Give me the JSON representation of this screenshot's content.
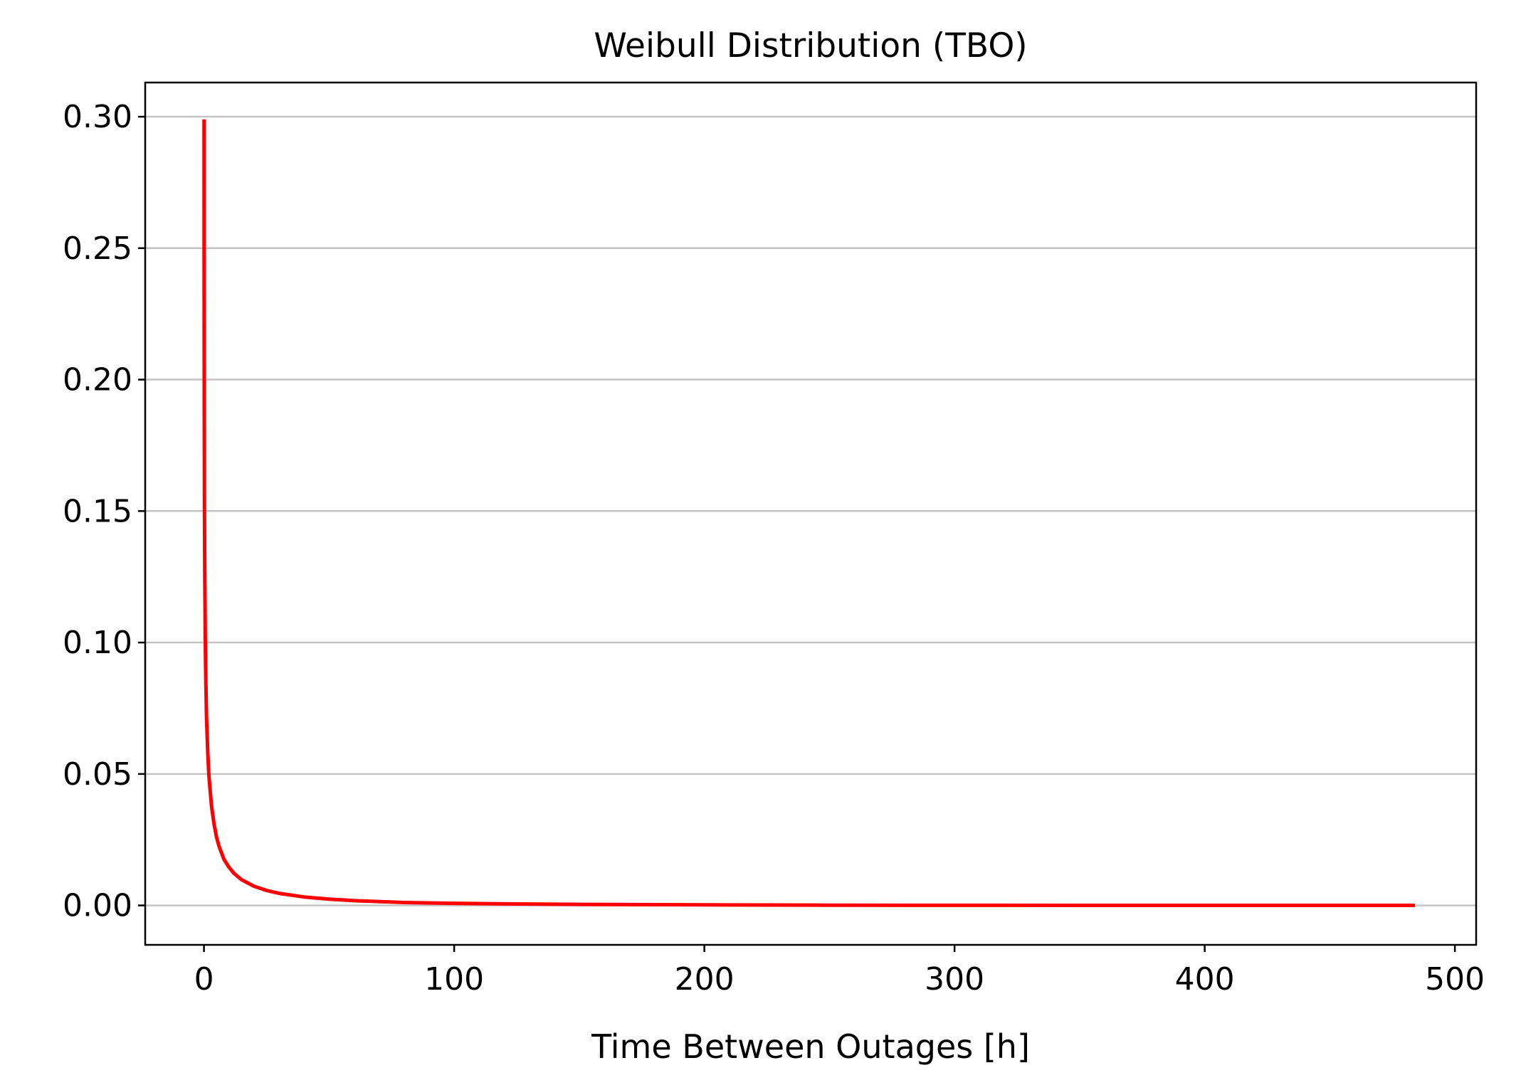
{
  "chart_data": {
    "type": "line",
    "title": "Weibull Distribution (TBO)",
    "xlabel": "Time Between Outages [h]",
    "ylabel": "",
    "xlim": [
      -23.5,
      508.5
    ],
    "ylim": [
      -0.015,
      0.313
    ],
    "xticks": [
      0,
      100,
      200,
      300,
      400,
      500
    ],
    "xtick_labels": [
      "0",
      "100",
      "200",
      "300",
      "400",
      "500"
    ],
    "yticks": [
      0.0,
      0.05,
      0.1,
      0.15,
      0.2,
      0.25,
      0.3
    ],
    "ytick_labels": [
      "0.00",
      "0.05",
      "0.10",
      "0.15",
      "0.20",
      "0.25",
      "0.30"
    ],
    "grid": "horizontal",
    "legend": "none",
    "series": [
      {
        "color": "#ff0000",
        "x": [
          0.02,
          0.05,
          0.1,
          0.2,
          0.3,
          0.5,
          0.7,
          1,
          1.5,
          2,
          3,
          4,
          5,
          6,
          8,
          10,
          12,
          15,
          20,
          25,
          30,
          40,
          50,
          60,
          80,
          100,
          120,
          150,
          200,
          250,
          300,
          350,
          400,
          450,
          484
        ],
        "y": [
          0.299,
          0.235,
          0.19,
          0.15,
          0.127,
          0.102,
          0.087,
          0.072,
          0.058,
          0.049,
          0.038,
          0.031,
          0.026,
          0.0225,
          0.0175,
          0.0145,
          0.0122,
          0.0098,
          0.0073,
          0.0057,
          0.0046,
          0.0032,
          0.0024,
          0.0018,
          0.0011,
          0.0008,
          0.0006,
          0.0004,
          0.0002,
          0.0001,
          5e-05,
          3e-05,
          2e-05,
          1e-05,
          1e-05
        ]
      }
    ]
  }
}
